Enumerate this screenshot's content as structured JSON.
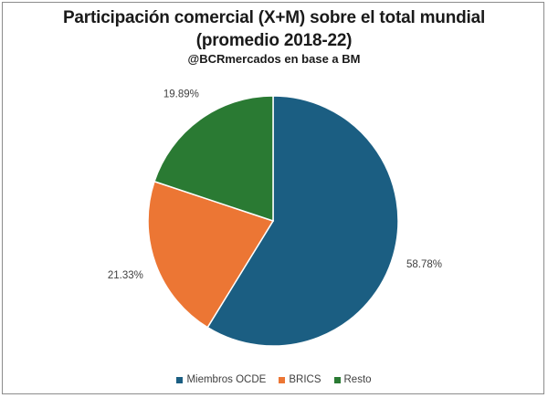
{
  "chart_data": {
    "type": "pie",
    "title_line1": "Participación comercial (X+M) sobre el total mundial",
    "title_line2": "(promedio 2018-22)",
    "subtitle": "@BCRmercados en base a BM",
    "slices": [
      {
        "name": "Miembros OCDE",
        "value": 58.78,
        "label": "58.78%",
        "color": "#1b5e82"
      },
      {
        "name": "BRICS",
        "value": 21.33,
        "label": "21.33%",
        "color": "#ec7634"
      },
      {
        "name": "Resto",
        "value": 19.89,
        "label": "19.89%",
        "color": "#2a7a33"
      }
    ],
    "legend_position": "bottom"
  }
}
